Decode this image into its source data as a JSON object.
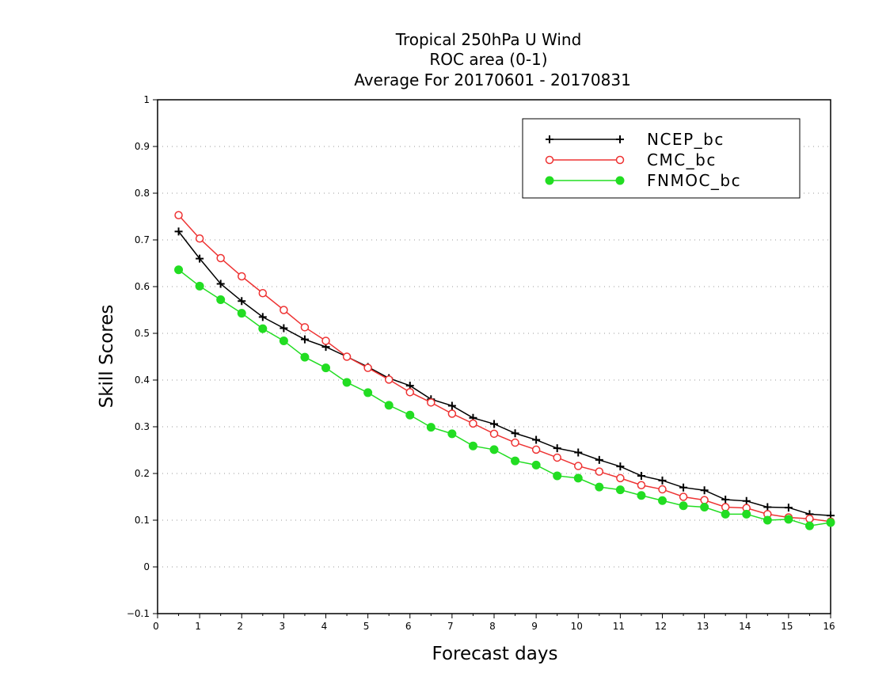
{
  "chart_data": {
    "type": "line",
    "title_lines": [
      "Tropical 250hPa U Wind",
      "ROC area (0-1)",
      "Average For 20170601 - 20170831"
    ],
    "xlabel": "Forecast days",
    "ylabel": "Skill Scores",
    "xlim": [
      0,
      16
    ],
    "ylim": [
      -0.1,
      1
    ],
    "xticks": [
      0,
      1,
      2,
      3,
      4,
      5,
      6,
      7,
      8,
      9,
      10,
      11,
      12,
      13,
      14,
      15,
      16
    ],
    "yticks": [
      -0.1,
      0,
      0.1,
      0.2,
      0.3,
      0.4,
      0.5,
      0.6,
      0.7,
      0.8,
      0.9,
      1
    ],
    "ytick_labels": [
      "−0.1",
      "0",
      "0.1",
      "0.2",
      "0.3",
      "0.4",
      "0.5",
      "0.6",
      "0.7",
      "0.8",
      "0.9",
      "1"
    ],
    "grid": true,
    "legend_position": "top-right",
    "x": [
      0.5,
      1,
      1.5,
      2,
      2.5,
      3,
      3.5,
      4,
      4.5,
      5,
      5.5,
      6,
      6.5,
      7,
      7.5,
      8,
      8.5,
      9,
      9.5,
      10,
      10.5,
      11,
      11.5,
      12,
      12.5,
      13,
      13.5,
      14,
      14.5,
      15,
      15.5,
      16
    ],
    "series": [
      {
        "name": "NCEP_bc",
        "color": "#000000",
        "marker": "plus",
        "values": [
          0.718,
          0.66,
          0.606,
          0.569,
          0.535,
          0.511,
          0.487,
          0.471,
          0.45,
          0.428,
          0.404,
          0.388,
          0.359,
          0.345,
          0.319,
          0.306,
          0.286,
          0.272,
          0.254,
          0.245,
          0.229,
          0.215,
          0.195,
          0.185,
          0.17,
          0.164,
          0.144,
          0.141,
          0.128,
          0.127,
          0.113,
          0.11
        ]
      },
      {
        "name": "CMC_bc",
        "color": "#ee3333",
        "marker": "open-circle",
        "values": [
          0.753,
          0.703,
          0.661,
          0.622,
          0.586,
          0.55,
          0.513,
          0.484,
          0.45,
          0.426,
          0.401,
          0.374,
          0.352,
          0.328,
          0.307,
          0.285,
          0.266,
          0.251,
          0.234,
          0.216,
          0.204,
          0.19,
          0.175,
          0.166,
          0.15,
          0.143,
          0.128,
          0.126,
          0.113,
          0.106,
          0.103,
          0.097
        ]
      },
      {
        "name": "FNMOC_bc",
        "color": "#22dd22",
        "marker": "filled-circle",
        "values": [
          0.636,
          0.601,
          0.572,
          0.543,
          0.51,
          0.484,
          0.449,
          0.426,
          0.395,
          0.373,
          0.346,
          0.325,
          0.299,
          0.285,
          0.259,
          0.251,
          0.227,
          0.218,
          0.195,
          0.19,
          0.171,
          0.165,
          0.153,
          0.142,
          0.131,
          0.128,
          0.113,
          0.113,
          0.1,
          0.102,
          0.088,
          0.095
        ]
      }
    ]
  }
}
